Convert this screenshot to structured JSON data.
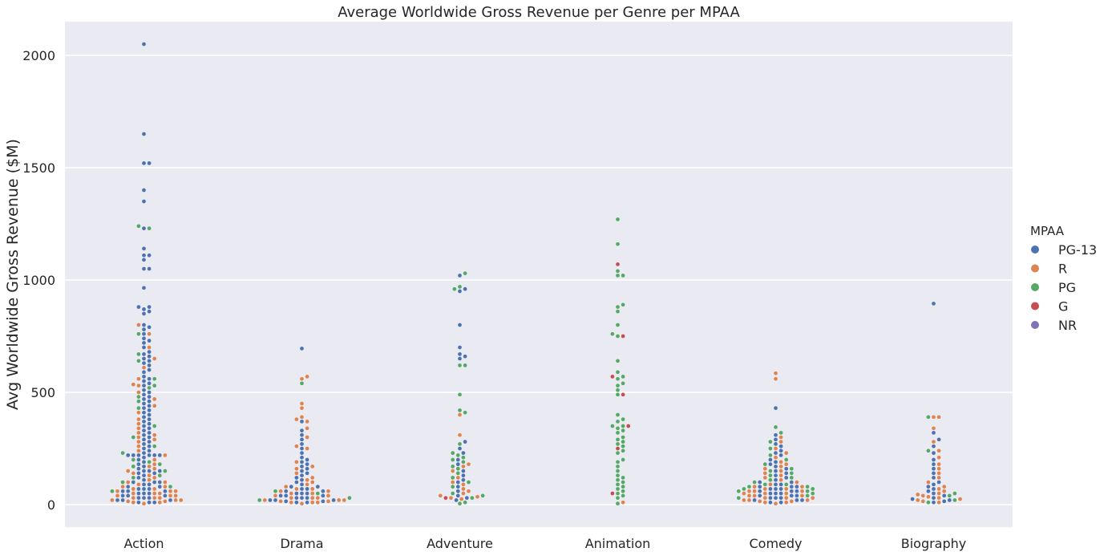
{
  "chart_data": {
    "type": "scatter",
    "subtype": "swarm",
    "title": "Average Worldwide Gross Revenue per Genre per MPAA",
    "xlabel": "",
    "ylabel": "Avg Worldwide Gross Revenue ($M)",
    "categories": [
      "Action",
      "Drama",
      "Adventure",
      "Animation",
      "Comedy",
      "Biography"
    ],
    "ylim": [
      -100,
      2150
    ],
    "yticks": [
      0,
      500,
      1000,
      1500,
      2000
    ],
    "grid": true,
    "legend": {
      "title": "MPAA",
      "placement": "center-right",
      "entries": [
        "PG-13",
        "R",
        "PG",
        "G",
        "NR"
      ]
    },
    "colors": {
      "PG-13": "#4c72b0",
      "R": "#dd8452",
      "PG": "#55a868",
      "G": "#c44e52",
      "NR": "#8172b3",
      "plot_background": "#eaeaf2",
      "grid": "#ffffff"
    },
    "series": [
      {
        "name": "PG-13",
        "points": {
          "Action": [
            2050,
            1650,
            1520,
            1520,
            1400,
            1350,
            1230,
            1140,
            1110,
            1110,
            1090,
            1050,
            1050,
            965,
            880,
            880,
            870,
            860,
            850,
            800,
            790,
            780,
            760,
            740,
            730,
            720,
            700,
            680,
            670,
            660,
            650,
            640,
            630,
            620,
            600,
            590,
            570,
            560,
            550,
            540,
            530,
            510,
            500,
            490,
            480,
            470,
            460,
            450,
            440,
            430,
            420,
            410,
            400,
            390,
            380,
            370,
            360,
            350,
            340,
            330,
            320,
            310,
            300,
            290,
            280,
            270,
            260,
            250,
            240,
            230,
            220,
            220,
            220,
            220,
            220,
            220,
            210,
            200,
            190,
            180,
            170,
            160,
            150,
            150,
            150,
            140,
            140,
            130,
            120,
            110,
            100,
            100,
            100,
            90,
            90,
            80,
            80,
            70,
            70,
            70,
            60,
            60,
            60,
            50,
            50,
            50,
            40,
            40,
            40,
            30,
            30,
            30,
            20,
            20,
            20,
            10,
            10,
            10
          ],
          "Drama": [
            695,
            370,
            330,
            310,
            290,
            270,
            250,
            230,
            210,
            200,
            190,
            180,
            170,
            160,
            150,
            140,
            130,
            120,
            110,
            100,
            90,
            80,
            80,
            70,
            70,
            60,
            60,
            50,
            50,
            50,
            40,
            40,
            40,
            30,
            30,
            30,
            20,
            20,
            20,
            15,
            15,
            10,
            10
          ],
          "Adventure": [
            1020,
            960,
            950,
            800,
            700,
            670,
            660,
            650,
            280,
            250,
            230,
            200,
            180,
            150,
            130,
            110,
            100,
            80,
            60,
            40,
            30,
            20
          ],
          "Animation": [],
          "Comedy": [
            430,
            310,
            290,
            270,
            260,
            240,
            230,
            220,
            200,
            190,
            180,
            170,
            160,
            150,
            140,
            130,
            120,
            110,
            100,
            100,
            90,
            90,
            80,
            80,
            80,
            70,
            70,
            70,
            60,
            60,
            60,
            50,
            50,
            50,
            40,
            40,
            40,
            30,
            30,
            30,
            20,
            20,
            20,
            10,
            10
          ],
          "Biography": [
            895,
            320,
            290,
            260,
            230,
            200,
            180,
            160,
            140,
            120,
            100,
            90,
            80,
            70,
            60,
            50,
            40,
            30,
            25,
            20,
            15,
            10
          ]
        }
      },
      {
        "name": "R",
        "points": {
          "Action": [
            800,
            760,
            700,
            650,
            610,
            560,
            535,
            530,
            500,
            470,
            440,
            410,
            380,
            360,
            340,
            320,
            310,
            300,
            290,
            280,
            260,
            240,
            220,
            200,
            180,
            170,
            160,
            150,
            140,
            130,
            120,
            110,
            100,
            100,
            90,
            80,
            80,
            70,
            70,
            60,
            60,
            60,
            50,
            50,
            50,
            40,
            40,
            40,
            30,
            30,
            30,
            20,
            20,
            20,
            15,
            15,
            10,
            10,
            5
          ],
          "Drama": [
            570,
            560,
            450,
            430,
            390,
            380,
            370,
            340,
            300,
            260,
            250,
            190,
            170,
            160,
            140,
            120,
            110,
            100,
            90,
            80,
            70,
            70,
            60,
            60,
            50,
            50,
            40,
            40,
            30,
            30,
            30,
            20,
            20,
            20,
            15,
            15,
            10,
            10,
            10,
            5
          ],
          "Adventure": [
            400,
            310,
            180,
            170,
            150,
            120,
            100,
            90,
            70,
            60,
            50,
            40,
            35,
            30,
            25
          ],
          "Animation": [
            10
          ],
          "Comedy": [
            585,
            560,
            300,
            280,
            250,
            230,
            210,
            190,
            180,
            170,
            160,
            150,
            140,
            130,
            120,
            110,
            100,
            90,
            80,
            80,
            70,
            70,
            60,
            60,
            60,
            50,
            50,
            50,
            40,
            40,
            40,
            30,
            30,
            30,
            20,
            20,
            20,
            15,
            15,
            10,
            10,
            5
          ],
          "Biography": [
            390,
            390,
            340,
            280,
            240,
            210,
            180,
            160,
            140,
            120,
            100,
            80,
            70,
            60,
            50,
            45,
            40,
            35,
            30,
            25,
            20,
            15,
            10
          ]
        }
      },
      {
        "name": "PG",
        "points": {
          "Action": [
            1240,
            1230,
            760,
            670,
            640,
            560,
            530,
            520,
            480,
            460,
            430,
            350,
            300,
            260,
            230,
            200,
            190,
            180,
            170,
            150,
            130,
            120,
            100,
            80,
            60
          ],
          "Drama": [
            540,
            60,
            50,
            30,
            20
          ],
          "Adventure": [
            1030,
            970,
            960,
            620,
            620,
            490,
            420,
            410,
            270,
            230,
            220,
            210,
            200,
            190,
            170,
            160,
            140,
            120,
            100,
            80,
            50,
            40,
            30,
            10,
            5
          ],
          "Animation": [
            1270,
            1160,
            1040,
            1020,
            1020,
            890,
            880,
            860,
            800,
            760,
            750,
            640,
            590,
            570,
            560,
            540,
            530,
            510,
            490,
            400,
            380,
            370,
            350,
            350,
            340,
            330,
            320,
            300,
            290,
            280,
            270,
            260,
            240,
            230,
            200,
            190,
            170,
            150,
            130,
            120,
            110,
            100,
            90,
            80,
            70,
            60,
            50,
            40,
            30,
            5
          ],
          "Comedy": [
            345,
            320,
            280,
            250,
            220,
            200,
            180,
            160,
            150,
            140,
            130,
            120,
            110,
            100,
            90,
            90,
            80,
            80,
            70,
            70,
            60,
            60,
            50,
            40,
            30
          ],
          "Biography": [
            390,
            240,
            50,
            40,
            20,
            10
          ]
        }
      },
      {
        "name": "G",
        "points": {
          "Action": [],
          "Drama": [],
          "Adventure": [
            30
          ],
          "Animation": [
            1070,
            750,
            570,
            490,
            350,
            250,
            50
          ],
          "Comedy": [],
          "Biography": []
        }
      },
      {
        "name": "NR",
        "points": {
          "Action": [],
          "Drama": [],
          "Adventure": [],
          "Animation": [],
          "Comedy": [],
          "Biography": []
        }
      }
    ]
  }
}
